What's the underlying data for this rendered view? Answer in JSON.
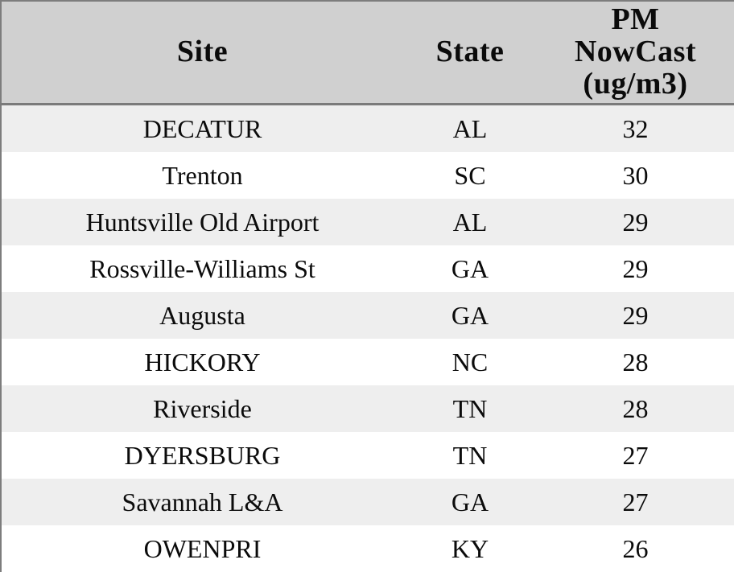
{
  "table": {
    "headers": {
      "site": "Site",
      "state": "State",
      "value": "PM NowCast (ug/m3)",
      "value_lines": {
        "line1": "PM",
        "line2": "NowCast",
        "line3": "(ug/m3)"
      }
    },
    "rows": [
      {
        "site": "DECATUR",
        "state": "AL",
        "value": "32"
      },
      {
        "site": "Trenton",
        "state": "SC",
        "value": "30"
      },
      {
        "site": "Huntsville Old Airport",
        "state": "AL",
        "value": "29"
      },
      {
        "site": "Rossville-Williams St",
        "state": "GA",
        "value": "29"
      },
      {
        "site": "Augusta",
        "state": "GA",
        "value": "29"
      },
      {
        "site": "HICKORY",
        "state": "NC",
        "value": "28"
      },
      {
        "site": "Riverside",
        "state": "TN",
        "value": "28"
      },
      {
        "site": "DYERSBURG",
        "state": "TN",
        "value": "27"
      },
      {
        "site": "Savannah L&A",
        "state": "GA",
        "value": "27"
      },
      {
        "site": "OWENPRI",
        "state": "KY",
        "value": "26"
      }
    ],
    "colors": {
      "header_bg": "#d0d0d0",
      "stripe_row_bg": "#eeeeee",
      "plain_row_bg": "#ffffff",
      "border": "#7d7d7d",
      "text": "#0b0b0b"
    }
  },
  "chart_data": {
    "type": "table",
    "title": "",
    "columns": [
      "Site",
      "State",
      "PM NowCast (ug/m3)"
    ],
    "rows": [
      [
        "DECATUR",
        "AL",
        32
      ],
      [
        "Trenton",
        "SC",
        30
      ],
      [
        "Huntsville Old Airport",
        "AL",
        29
      ],
      [
        "Rossville-Williams St",
        "GA",
        29
      ],
      [
        "Augusta",
        "GA",
        29
      ],
      [
        "HICKORY",
        "NC",
        28
      ],
      [
        "Riverside",
        "TN",
        28
      ],
      [
        "DYERSBURG",
        "TN",
        27
      ],
      [
        "Savannah L&A",
        "GA",
        27
      ],
      [
        "OWENPRI",
        "KY",
        26
      ]
    ],
    "layout": {
      "striped": true,
      "header_background": "#d0d0d0",
      "stripe_background": "#eeeeee",
      "value_unit": "ug/m3"
    }
  }
}
